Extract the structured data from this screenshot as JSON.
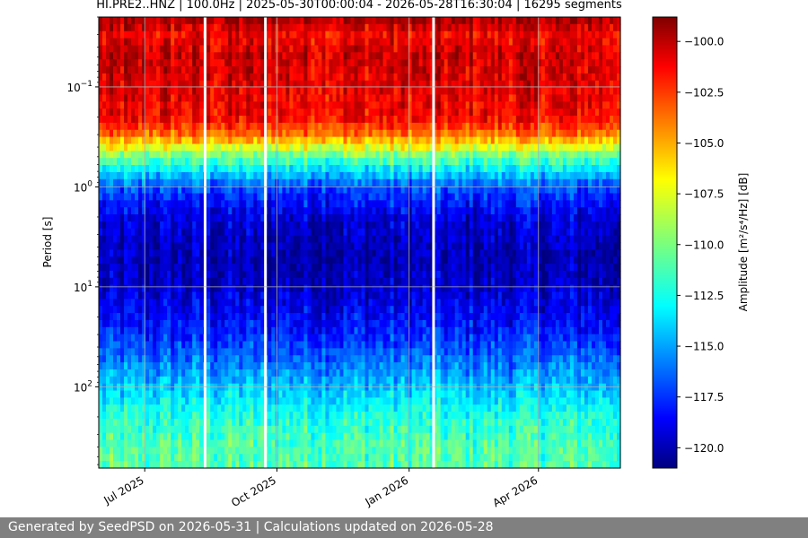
{
  "chart_data": {
    "type": "heatmap",
    "title": "HI.PRE2..HNZ | 100.0Hz | 2025-05-30T00:00:04 - 2026-05-28T16:30:04 | 16295 segments",
    "ylabel": "Period [s]",
    "xlabel": "",
    "y_scale": "log",
    "y_range_s": [
      0.02,
      650
    ],
    "y_major_ticks": [
      {
        "value": 0.1,
        "base": "10",
        "exp": "−1"
      },
      {
        "value": 1,
        "base": "10",
        "exp": "0"
      },
      {
        "value": 10,
        "base": "10",
        "exp": "1"
      },
      {
        "value": 100,
        "base": "10",
        "exp": "2"
      }
    ],
    "x_range": [
      "2025-05-30",
      "2026-05-28"
    ],
    "x_ticks": [
      {
        "date": "2025-07-01",
        "label": "Jul 2025"
      },
      {
        "date": "2025-10-01",
        "label": "Oct 2025"
      },
      {
        "date": "2026-01-01",
        "label": "Jan 2026"
      },
      {
        "date": "2026-04-01",
        "label": "Apr 2026"
      }
    ],
    "grid": true,
    "colormap": "jet",
    "colorbar": {
      "label": "Amplitude [m²/s⁴/Hz] [dB]",
      "range_db": [
        -121,
        -98.8
      ],
      "ticks": [
        -100.0,
        -102.5,
        -105.0,
        -107.5,
        -110.0,
        -112.5,
        -115.0,
        -117.5,
        -120.0
      ]
    },
    "amplitude_profile": [
      {
        "period_s": 0.02,
        "db": -99.5
      },
      {
        "period_s": 0.03,
        "db": -101.5
      },
      {
        "period_s": 0.05,
        "db": -100.5
      },
      {
        "period_s": 0.1,
        "db": -101.0
      },
      {
        "period_s": 0.2,
        "db": -101.5
      },
      {
        "period_s": 0.3,
        "db": -104.0
      },
      {
        "period_s": 0.5,
        "db": -110.5
      },
      {
        "period_s": 1,
        "db": -116.5
      },
      {
        "period_s": 2,
        "db": -119.0
      },
      {
        "period_s": 5,
        "db": -120.0
      },
      {
        "period_s": 10,
        "db": -119.5
      },
      {
        "period_s": 30,
        "db": -117.5
      },
      {
        "period_s": 100,
        "db": -114.0
      },
      {
        "period_s": 200,
        "db": -112.0
      },
      {
        "period_s": 400,
        "db": -111.0
      }
    ],
    "data_gap_dates": [
      "2025-08-12",
      "2025-09-23",
      "2026-01-18"
    ]
  },
  "footer": {
    "text": "Generated by SeedPSD on 2026-05-31 | Calculations updated on 2026-05-28"
  }
}
